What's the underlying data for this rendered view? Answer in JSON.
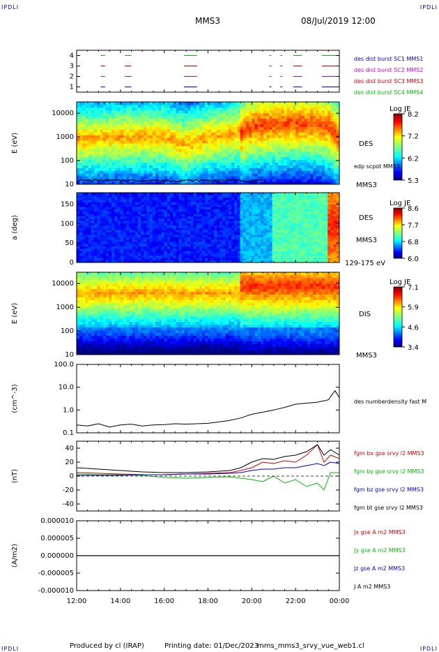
{
  "header": {
    "corner_tl": "IPDLI",
    "corner_tr": "IPDLI",
    "corner_bl": "IPDLI",
    "corner_br": "IPDLI",
    "spacecraft": "MMS3",
    "datetime": "08/Jul/2019 12:00"
  },
  "footer": {
    "produced": "Produced by cl (IRAP)",
    "printing": "Printing date: 01/Dec/2023",
    "script": "mms_mms3_srvy_vue_web1.cl"
  },
  "x_axis": {
    "ticks": [
      "12:00",
      "14:00",
      "16:00",
      "18:00",
      "20:00",
      "22:00",
      "00:00"
    ],
    "range_hours": [
      12,
      24
    ]
  },
  "panel_burst": {
    "y_ticks": [
      "1",
      "2",
      "3",
      "4"
    ],
    "legend": [
      {
        "text": "des dist burst SC1 MMS1",
        "color": "#0000cc"
      },
      {
        "text": "des dist burst SC2 MMS2",
        "color": "#cc00cc"
      },
      {
        "text": "des dist burst SC3 MMS3",
        "color": "#cc0000"
      },
      {
        "text": "des dist burst SC4 MMS4",
        "color": "#00bb00"
      }
    ]
  },
  "panel_des_e": {
    "ylabel": "E (eV)",
    "y_ticks": [
      "10",
      "100",
      "1000",
      "10000"
    ],
    "right_label": "DES",
    "overlay_label": "edp scpot MMS3",
    "sc_label": "MMS3",
    "cbar_title": "Log JE",
    "cbar_ticks": [
      "8.2",
      "7.2",
      "6.2",
      "5.3"
    ]
  },
  "panel_des_pa": {
    "ylabel": "a (deg)",
    "y_ticks": [
      "0",
      "50",
      "100",
      "150"
    ],
    "right_label": "DES",
    "sc_label": "MMS3",
    "energy_label": "129-175 eV",
    "cbar_title": "Log JE",
    "cbar_ticks": [
      "8.6",
      "7.7",
      "6.8",
      "6.0"
    ]
  },
  "panel_dis_e": {
    "ylabel": "E (eV)",
    "y_ticks": [
      "10",
      "100",
      "1000",
      "10000"
    ],
    "right_label": "DIS",
    "sc_label": "MMS3",
    "cbar_title": "Log JE",
    "cbar_ticks": [
      "7.1",
      "5.9",
      "4.6",
      "3.4"
    ]
  },
  "panel_density": {
    "ylabel": "(cm^-3)",
    "y_ticks": [
      "0.1",
      "1.0",
      "10.0",
      "100.0"
    ],
    "legend": "des numberdensity fast M"
  },
  "panel_bfield": {
    "ylabel": "(nT)",
    "y_ticks": [
      "-40",
      "-20",
      "0",
      "20",
      "40"
    ],
    "legend": [
      {
        "text": "fgm bx gse srvy l2 MMS3",
        "color": "#cc0000"
      },
      {
        "text": "fgm by gse srvy l2 MMS3",
        "color": "#00bb00"
      },
      {
        "text": "fgm bz gse srvy l2 MMS3",
        "color": "#0000cc"
      },
      {
        "text": "fgm bt gse srvy l2 MMS3",
        "color": "#000000"
      }
    ]
  },
  "panel_current": {
    "ylabel": "(A/m2)",
    "y_ticks": [
      "-0.000010",
      "-0.000005",
      "0.000000",
      "0.000005",
      "0.000010"
    ],
    "legend": [
      {
        "text": "Jx gse A m2 MMS3",
        "color": "#cc0000"
      },
      {
        "text": "Jy gse A m2 MMS3",
        "color": "#00bb00"
      },
      {
        "text": "Jz gse A m2 MMS3",
        "color": "#0000cc"
      },
      {
        "text": "J A m2 MMS3",
        "color": "#000000"
      }
    ]
  },
  "colors": {
    "jet": [
      "#00007f",
      "#0000ff",
      "#0080ff",
      "#00ffff",
      "#80ff80",
      "#ffff00",
      "#ff8000",
      "#ff0000",
      "#7f0000"
    ]
  },
  "chart_data": [
    {
      "type": "line",
      "name": "burst intervals",
      "x_unit": "hour",
      "intervals_hours": [
        [
          13.1,
          13.3
        ],
        [
          14.2,
          14.5
        ],
        [
          16.9,
          17.5
        ],
        [
          20.8,
          20.9
        ],
        [
          21.3,
          21.4
        ],
        [
          21.9,
          22.3
        ],
        [
          23.2,
          23.9
        ]
      ],
      "ylim": [
        0.5,
        4.5
      ]
    },
    {
      "type": "heatmap",
      "name": "DES energy spectrogram",
      "x_unit": "hour",
      "y_scale": "log",
      "ylim_eV": [
        10,
        30000
      ],
      "zlim": [
        5.3,
        8.2
      ],
      "peak_energy_profile": [
        {
          "x": 12,
          "e": 800
        },
        {
          "x": 14,
          "e": 1000
        },
        {
          "x": 16,
          "e": 1000
        },
        {
          "x": 17,
          "e": 500
        },
        {
          "x": 18,
          "e": 1000
        },
        {
          "x": 19.5,
          "e": 1500
        },
        {
          "x": 20,
          "e": 3000
        },
        {
          "x": 22,
          "e": 4000
        },
        {
          "x": 23.5,
          "e": 3000
        },
        {
          "x": 24,
          "e": 1000
        }
      ]
    },
    {
      "type": "heatmap",
      "name": "DES pitch angle 129-175 eV",
      "x_unit": "hour",
      "ylim_deg": [
        0,
        180
      ],
      "zlim": [
        6.0,
        8.6
      ]
    },
    {
      "type": "heatmap",
      "name": "DIS energy spectrogram",
      "x_unit": "hour",
      "y_scale": "log",
      "ylim_eV": [
        10,
        30000
      ],
      "zlim": [
        3.4,
        7.1
      ]
    },
    {
      "type": "line",
      "name": "des numberdensity fast",
      "y_scale": "log",
      "ylim": [
        0.1,
        100
      ],
      "x": [
        12,
        12.5,
        13,
        13.5,
        14,
        14.5,
        15,
        15.5,
        16,
        16.5,
        17,
        17.5,
        18,
        18.5,
        19,
        19.5,
        20,
        20.5,
        21,
        21.5,
        22,
        22.5,
        23,
        23.5,
        23.8,
        24
      ],
      "y": [
        0.22,
        0.2,
        0.25,
        0.18,
        0.22,
        0.24,
        0.2,
        0.22,
        0.23,
        0.25,
        0.24,
        0.25,
        0.26,
        0.3,
        0.35,
        0.45,
        0.65,
        0.8,
        1.0,
        1.3,
        1.8,
        2.0,
        2.2,
        2.8,
        7.0,
        3.5
      ]
    },
    {
      "type": "line",
      "name": "fgm gse srvy",
      "ylim": [
        -50,
        50
      ],
      "x": [
        12,
        13,
        14,
        15,
        16,
        17,
        18,
        19,
        19.5,
        20,
        20.5,
        21,
        21.5,
        22,
        22.5,
        23,
        23.3,
        23.6,
        24
      ],
      "series": [
        {
          "name": "fgm bx gse srvy l2 MMS3",
          "values": [
            5,
            4,
            3,
            2,
            2,
            3,
            4,
            5,
            8,
            12,
            20,
            18,
            22,
            20,
            30,
            45,
            20,
            30,
            25
          ]
        },
        {
          "name": "fgm by gse srvy l2 MMS3",
          "values": [
            3,
            2,
            2,
            1,
            -2,
            -3,
            -2,
            -1,
            -3,
            -5,
            -8,
            0,
            -10,
            -5,
            -15,
            -10,
            -20,
            5,
            5
          ]
        },
        {
          "name": "fgm bz gse srvy l2 MMS3",
          "values": [
            1,
            1,
            1,
            2,
            2,
            3,
            3,
            4,
            5,
            8,
            10,
            10,
            12,
            12,
            15,
            18,
            15,
            20,
            18
          ]
        },
        {
          "name": "fgm bt gse srvy l2 MMS3",
          "values": [
            12,
            10,
            8,
            6,
            5,
            5,
            6,
            8,
            12,
            20,
            25,
            24,
            28,
            30,
            35,
            45,
            30,
            38,
            30
          ]
        }
      ]
    },
    {
      "type": "line",
      "name": "current density",
      "ylim": [
        -1e-05,
        1e-05
      ],
      "x": [
        12,
        24
      ],
      "series": [
        {
          "name": "J A m2 MMS3",
          "values": [
            0,
            0
          ]
        }
      ]
    }
  ]
}
